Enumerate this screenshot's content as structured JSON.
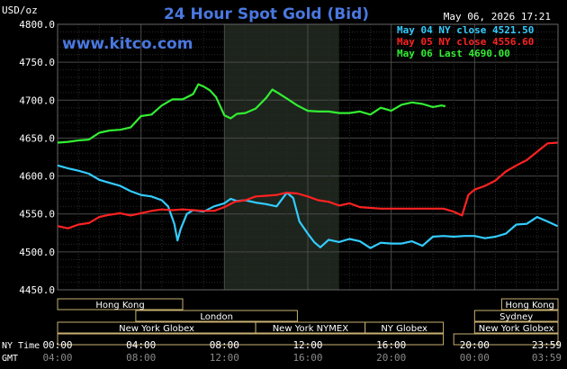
{
  "header": {
    "title": "24 Hour Spot Gold (Bid)",
    "units": "USD/oz",
    "timestamp": "May 06, 2026 17:21",
    "brand": "www.kitco.com"
  },
  "legend": [
    {
      "label": "May 04 NY close 4521.50",
      "color": "#33ccff"
    },
    {
      "label": "May 05 NY close 4556.60",
      "color": "#ff2222"
    },
    {
      "label": "May 06 Last 4690.00",
      "color": "#33ee33"
    }
  ],
  "x_axis": {
    "ny_label": "NY Time",
    "gmt_label": "GMT",
    "ny_ticks": [
      "00:00",
      "04:00",
      "08:00",
      "12:00",
      "16:00",
      "20:00",
      "23:59"
    ],
    "gmt_ticks": [
      "04:00",
      "08:00",
      "12:00",
      "16:00",
      "20:00",
      "00:00",
      "03:59"
    ]
  },
  "sessions": [
    {
      "row": 0,
      "label": "Hong Kong",
      "start": -1,
      "end": 6
    },
    {
      "row": 0,
      "label": "Hong Kong",
      "start": 21.3,
      "end": 25
    },
    {
      "row": 1,
      "label": "London",
      "start": 3.75,
      "end": 11.5
    },
    {
      "row": 1,
      "label": "Sydney",
      "start": 20,
      "end": 25
    },
    {
      "row": 2,
      "label": "New York Globex",
      "start": -1,
      "end": 9.5
    },
    {
      "row": 2,
      "label": "New York NYMEX",
      "start": 9.5,
      "end": 14.75
    },
    {
      "row": 2,
      "label": "NY Globex",
      "start": 14.75,
      "end": 18.5
    },
    {
      "row": 2,
      "label": "New York Globex",
      "start": 20,
      "end": 25
    },
    {
      "row": 3,
      "label": "",
      "start": -1,
      "end": 18.5
    },
    {
      "row": 3,
      "label": "",
      "start": 19,
      "end": 25
    }
  ],
  "chart_data": {
    "type": "line",
    "x_unit": "hours (NY time)",
    "ylim": [
      4450,
      4800
    ],
    "xlim": [
      0,
      24
    ],
    "y_ticks": [
      4450,
      4500,
      4550,
      4600,
      4650,
      4700,
      4750,
      4800
    ],
    "y_tick_labels": [
      "4450.0",
      "4500.0",
      "4550.0",
      "4600.0",
      "4650.0",
      "4700.0",
      "4750.0",
      "4800.0"
    ],
    "grid": true,
    "highlight_range": [
      8,
      13.5
    ],
    "series": [
      {
        "name": "May 04 NY close 4521.50",
        "color": "#33ccff",
        "points": [
          [
            0,
            4614
          ],
          [
            0.5,
            4610
          ],
          [
            1,
            4607
          ],
          [
            1.5,
            4603
          ],
          [
            2,
            4595
          ],
          [
            2.5,
            4591
          ],
          [
            3,
            4587
          ],
          [
            3.5,
            4580
          ],
          [
            4,
            4575
          ],
          [
            4.5,
            4573
          ],
          [
            5,
            4568
          ],
          [
            5.3,
            4560
          ],
          [
            5.6,
            4537
          ],
          [
            5.75,
            4515
          ],
          [
            5.9,
            4530
          ],
          [
            6.2,
            4550
          ],
          [
            6.5,
            4555
          ],
          [
            7,
            4553
          ],
          [
            7.5,
            4560
          ],
          [
            8,
            4564
          ],
          [
            8.3,
            4570
          ],
          [
            8.6,
            4567
          ],
          [
            9,
            4568
          ],
          [
            9.5,
            4565
          ],
          [
            10,
            4563
          ],
          [
            10.5,
            4560
          ],
          [
            11,
            4578
          ],
          [
            11.3,
            4571
          ],
          [
            11.6,
            4540
          ],
          [
            12,
            4524
          ],
          [
            12.3,
            4513
          ],
          [
            12.6,
            4506
          ],
          [
            13,
            4516
          ],
          [
            13.5,
            4513
          ],
          [
            14,
            4517
          ],
          [
            14.5,
            4514
          ],
          [
            15,
            4505
          ],
          [
            15.5,
            4512
          ],
          [
            16,
            4511
          ],
          [
            16.5,
            4511
          ],
          [
            17,
            4514
          ],
          [
            17.5,
            4508
          ],
          [
            18,
            4520
          ],
          [
            18.5,
            4521
          ],
          [
            19,
            4520
          ],
          [
            19.5,
            4521
          ],
          [
            20,
            4521
          ],
          [
            20.5,
            4518
          ],
          [
            21,
            4520
          ],
          [
            21.5,
            4524
          ],
          [
            22,
            4536
          ],
          [
            22.5,
            4537
          ],
          [
            23,
            4546
          ],
          [
            23.5,
            4540
          ],
          [
            23.98,
            4534
          ]
        ]
      },
      {
        "name": "May 05 NY close 4556.60",
        "color": "#ff2222",
        "points": [
          [
            0,
            4534
          ],
          [
            0.5,
            4531
          ],
          [
            1,
            4536
          ],
          [
            1.5,
            4538
          ],
          [
            2,
            4546
          ],
          [
            2.5,
            4549
          ],
          [
            3,
            4551
          ],
          [
            3.5,
            4548
          ],
          [
            4,
            4551
          ],
          [
            4.5,
            4554
          ],
          [
            5,
            4556
          ],
          [
            5.5,
            4555
          ],
          [
            6,
            4556
          ],
          [
            6.5,
            4555
          ],
          [
            7,
            4554
          ],
          [
            7.5,
            4554
          ],
          [
            8,
            4559
          ],
          [
            8.5,
            4566
          ],
          [
            9,
            4568
          ],
          [
            9.5,
            4573
          ],
          [
            10,
            4574
          ],
          [
            10.5,
            4575
          ],
          [
            11,
            4578
          ],
          [
            11.5,
            4577
          ],
          [
            12,
            4573
          ],
          [
            12.5,
            4568
          ],
          [
            13,
            4566
          ],
          [
            13.5,
            4561
          ],
          [
            14,
            4564
          ],
          [
            14.5,
            4559
          ],
          [
            15,
            4558
          ],
          [
            15.5,
            4557
          ],
          [
            16,
            4557
          ],
          [
            16.5,
            4557
          ],
          [
            17,
            4557
          ],
          [
            17.5,
            4557
          ],
          [
            18,
            4557
          ],
          [
            18.5,
            4557
          ],
          [
            19,
            4553
          ],
          [
            19.4,
            4548
          ],
          [
            19.7,
            4575
          ],
          [
            20,
            4582
          ],
          [
            20.5,
            4587
          ],
          [
            21,
            4594
          ],
          [
            21.5,
            4606
          ],
          [
            22,
            4614
          ],
          [
            22.5,
            4621
          ],
          [
            23,
            4632
          ],
          [
            23.5,
            4643
          ],
          [
            23.98,
            4644
          ]
        ]
      },
      {
        "name": "May 06 Last 4690.00",
        "color": "#33ee33",
        "points": [
          [
            0,
            4644
          ],
          [
            0.5,
            4645
          ],
          [
            1,
            4647
          ],
          [
            1.5,
            4648
          ],
          [
            2,
            4657
          ],
          [
            2.5,
            4660
          ],
          [
            3,
            4661
          ],
          [
            3.5,
            4664
          ],
          [
            4,
            4679
          ],
          [
            4.5,
            4681
          ],
          [
            5,
            4693
          ],
          [
            5.5,
            4701
          ],
          [
            6,
            4701
          ],
          [
            6.5,
            4708
          ],
          [
            6.75,
            4721
          ],
          [
            7,
            4718
          ],
          [
            7.3,
            4713
          ],
          [
            7.6,
            4704
          ],
          [
            8,
            4680
          ],
          [
            8.3,
            4676
          ],
          [
            8.6,
            4682
          ],
          [
            9,
            4683
          ],
          [
            9.5,
            4689
          ],
          [
            10,
            4703
          ],
          [
            10.3,
            4714
          ],
          [
            10.6,
            4709
          ],
          [
            11,
            4702
          ],
          [
            11.5,
            4693
          ],
          [
            12,
            4686
          ],
          [
            12.5,
            4685
          ],
          [
            13,
            4685
          ],
          [
            13.5,
            4683
          ],
          [
            14,
            4683
          ],
          [
            14.5,
            4685
          ],
          [
            15,
            4681
          ],
          [
            15.5,
            4690
          ],
          [
            16,
            4686
          ],
          [
            16.5,
            4694
          ],
          [
            17,
            4697
          ],
          [
            17.5,
            4695
          ],
          [
            18,
            4691
          ],
          [
            18.4,
            4693
          ],
          [
            18.6,
            4692
          ]
        ]
      }
    ]
  }
}
